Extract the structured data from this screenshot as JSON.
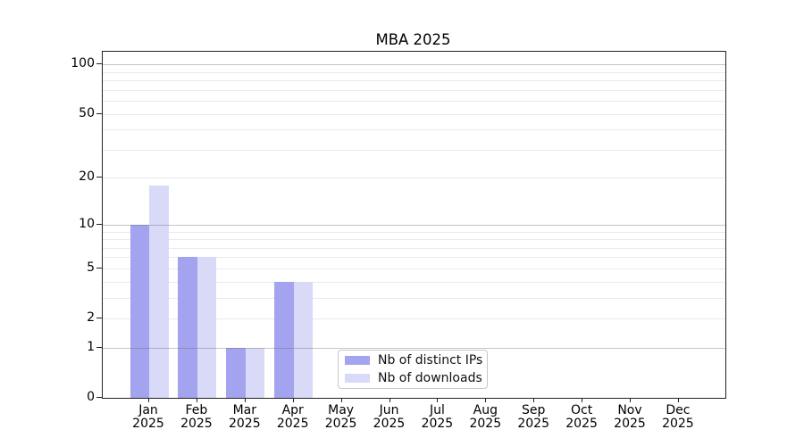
{
  "chart_data": {
    "type": "bar",
    "title": "MBA 2025",
    "categories": [
      "Jan",
      "Feb",
      "Mar",
      "Apr",
      "May",
      "Jun",
      "Jul",
      "Aug",
      "Sep",
      "Oct",
      "Nov",
      "Dec"
    ],
    "category_year": "2025",
    "series": [
      {
        "name": "Nb of distinct IPs",
        "color": "#a3a3f0",
        "values": [
          10,
          6,
          1,
          4,
          0,
          0,
          0,
          0,
          0,
          0,
          0,
          0
        ]
      },
      {
        "name": "Nb of downloads",
        "color": "#d9d9f8",
        "values": [
          18,
          6,
          1,
          4,
          0,
          0,
          0,
          0,
          0,
          0,
          0,
          0
        ]
      }
    ],
    "xlabel": "",
    "ylabel": "",
    "yscale": "log1p",
    "ylim": [
      0,
      118
    ],
    "yticks": [
      0,
      1,
      2,
      5,
      10,
      20,
      50,
      100
    ],
    "minor_yticks": [
      3,
      4,
      6,
      7,
      8,
      9,
      30,
      40,
      60,
      70,
      80,
      90
    ],
    "grid": true,
    "legend_position": "lower-center",
    "colors": {
      "axis": "#222222",
      "text": "#000000",
      "major_grid": "#bcbcbc",
      "minor_grid": "#eaeaea",
      "legend_border": "#c8c8c8"
    }
  }
}
